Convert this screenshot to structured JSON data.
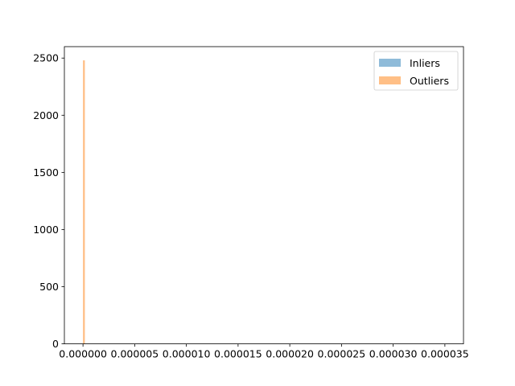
{
  "chart_data": {
    "type": "bar",
    "title": "",
    "xlabel": "",
    "ylabel": "",
    "xlim": [
      -1.8e-06,
      3.68e-05
    ],
    "ylim": [
      0,
      2600
    ],
    "x_ticks": [
      0,
      5e-06,
      1e-05,
      1.5e-05,
      2e-05,
      2.5e-05,
      3e-05,
      3.5e-05
    ],
    "x_tick_labels": [
      "0.000000",
      "0.000005",
      "0.000010",
      "0.000015",
      "0.000020",
      "0.000025",
      "0.000030",
      "0.000035"
    ],
    "y_ticks": [
      0,
      500,
      1000,
      1500,
      2000,
      2500
    ],
    "y_tick_labels": [
      "0",
      "500",
      "1000",
      "1500",
      "2000",
      "2500"
    ],
    "legend_position": "top-right",
    "grid": false,
    "series": [
      {
        "name": "Inliers",
        "color": "#1f77b4",
        "alpha": 0.5,
        "bins": [
          {
            "x_start": 0.0,
            "x_end": 1.8e-07,
            "count": 0
          }
        ]
      },
      {
        "name": "Outliers",
        "color": "#ff7f0e",
        "alpha": 0.5,
        "bins": [
          {
            "x_start": 0.0,
            "x_end": 1.8e-07,
            "count": 2480
          }
        ]
      }
    ]
  }
}
